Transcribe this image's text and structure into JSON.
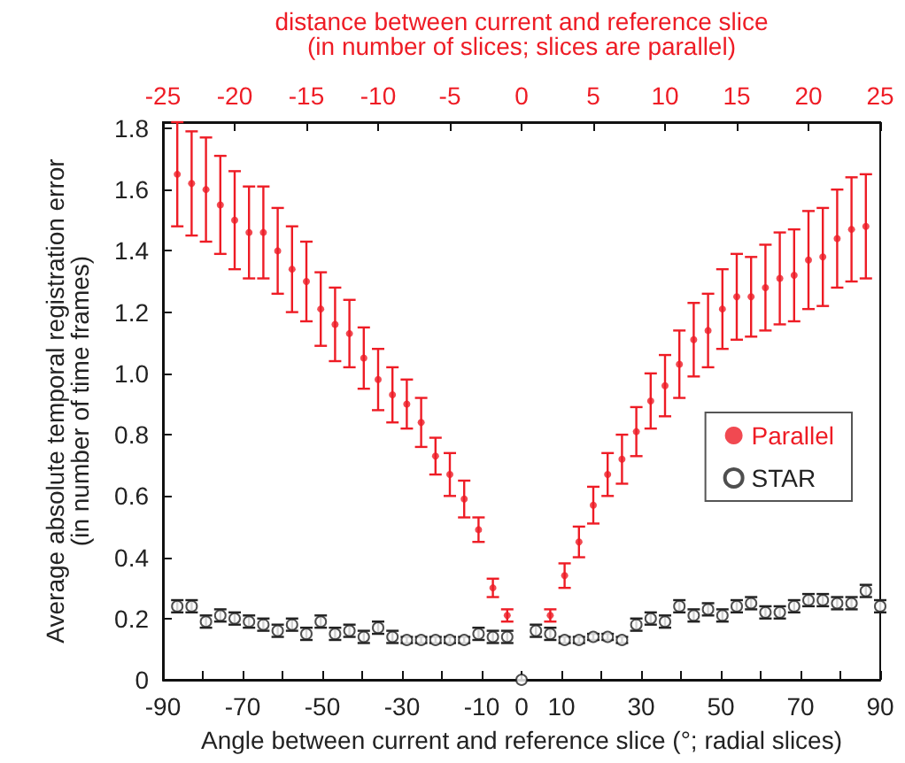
{
  "chart_data": {
    "type": "scatter",
    "xlabel": "Angle between current and reference slice (°; radial slices)",
    "ylabel": "Average absolute temporal registration error\n(in number of time frames)",
    "x2label": "distance between current and reference slice\n(in number of slices; slices are parallel)",
    "xlim": [
      -90,
      90
    ],
    "xticks": [
      -90,
      {
        "value": -80,
        "label": null
      },
      -70,
      {
        "value": -60,
        "label": null
      },
      -50,
      {
        "value": -40,
        "label": null
      },
      -30,
      {
        "value": -20,
        "label": null
      },
      -10,
      0,
      10,
      {
        "value": 20,
        "label": null
      },
      30,
      {
        "value": 40,
        "label": null
      },
      50,
      {
        "value": 60,
        "label": null
      },
      70,
      {
        "value": 80,
        "label": null
      },
      90
    ],
    "x2lim": [
      -25,
      25
    ],
    "x2ticks": [
      -25,
      -20,
      -15,
      -10,
      -5,
      0,
      5,
      10,
      15,
      20,
      25
    ],
    "ylim": [
      0,
      1.82
    ],
    "yticks": [
      0,
      0.2,
      0.4,
      0.6,
      0.8,
      {
        "value": 1,
        "label": "1.0"
      },
      1.2,
      1.4,
      1.6,
      1.8
    ],
    "grid": false,
    "legend": "right",
    "series": [
      {
        "name": "Parallel",
        "color": "#ee1c25",
        "axis": "x2",
        "marker": "circle",
        "x": [
          -24,
          -23,
          -22,
          -21,
          -20,
          -19,
          -18,
          -17,
          -16,
          -15,
          -14,
          -13,
          -12,
          -11,
          -10,
          -9,
          -8,
          -7,
          -6,
          -5,
          -4,
          -3,
          -2,
          -1,
          2,
          3,
          4,
          5,
          6,
          7,
          8,
          9,
          10,
          11,
          12,
          13,
          14,
          15,
          16,
          17,
          18,
          19,
          20,
          21,
          22,
          23,
          24
        ],
        "values": [
          1.65,
          1.62,
          1.6,
          1.55,
          1.5,
          1.46,
          1.46,
          1.4,
          1.34,
          1.3,
          1.21,
          1.16,
          1.13,
          1.05,
          0.98,
          0.93,
          0.9,
          0.84,
          0.73,
          0.67,
          0.59,
          0.49,
          0.3,
          0.21,
          0.21,
          0.34,
          0.45,
          0.57,
          0.67,
          0.72,
          0.81,
          0.91,
          0.96,
          1.03,
          1.11,
          1.14,
          1.21,
          1.25,
          1.25,
          1.28,
          1.31,
          1.32,
          1.37,
          1.38,
          1.44,
          1.47,
          1.48
        ],
        "errors": [
          0.17,
          0.17,
          0.17,
          0.16,
          0.16,
          0.15,
          0.15,
          0.14,
          0.14,
          0.13,
          0.12,
          0.12,
          0.11,
          0.1,
          0.1,
          0.09,
          0.08,
          0.08,
          0.06,
          0.07,
          0.06,
          0.04,
          0.03,
          0.02,
          0.02,
          0.04,
          0.05,
          0.06,
          0.07,
          0.08,
          0.08,
          0.09,
          0.1,
          0.11,
          0.12,
          0.12,
          0.13,
          0.14,
          0.13,
          0.14,
          0.15,
          0.15,
          0.16,
          0.16,
          0.16,
          0.17,
          0.17
        ]
      },
      {
        "name": "STAR",
        "color": "#222222",
        "marker": "circle",
        "x": [
          -86.4,
          -82.8,
          -79.2,
          -75.6,
          -72,
          -68.4,
          -64.8,
          -61.2,
          -57.6,
          -54,
          -50.4,
          -46.8,
          -43.2,
          -39.6,
          -36,
          -32.4,
          -28.8,
          -25.2,
          -21.6,
          -18,
          -14.4,
          -10.8,
          -7.2,
          -3.6,
          0,
          3.6,
          7.2,
          10.8,
          14.4,
          18,
          21.6,
          25.2,
          28.8,
          32.4,
          36,
          39.6,
          43.2,
          46.8,
          50.4,
          54,
          57.6,
          61.2,
          64.8,
          68.4,
          72,
          75.6,
          79.2,
          82.8,
          86.4,
          90
        ],
        "values": [
          0.24,
          0.24,
          0.19,
          0.21,
          0.2,
          0.19,
          0.18,
          0.16,
          0.18,
          0.15,
          0.19,
          0.15,
          0.16,
          0.14,
          0.17,
          0.14,
          0.13,
          0.13,
          0.13,
          0.13,
          0.13,
          0.15,
          0.14,
          0.14,
          0,
          0.16,
          0.15,
          0.13,
          0.13,
          0.14,
          0.14,
          0.13,
          0.18,
          0.2,
          0.19,
          0.24,
          0.21,
          0.23,
          0.21,
          0.24,
          0.25,
          0.22,
          0.22,
          0.24,
          0.26,
          0.26,
          0.25,
          0.25,
          0.29,
          0.24
        ],
        "errors": [
          0.02,
          0.02,
          0.02,
          0.02,
          0.02,
          0.02,
          0.02,
          0.02,
          0.02,
          0.02,
          0.02,
          0.02,
          0.02,
          0.02,
          0.02,
          0.02,
          0.01,
          0.01,
          0.01,
          0.01,
          0.01,
          0.02,
          0.02,
          0.02,
          null,
          0.02,
          0.02,
          0.01,
          0.01,
          0.01,
          0.01,
          0.01,
          0.02,
          0.02,
          0.02,
          0.02,
          0.02,
          0.02,
          0.02,
          0.02,
          0.02,
          0.02,
          0.02,
          0.02,
          0.02,
          0.02,
          0.02,
          0.02,
          0.02,
          0.02
        ]
      }
    ]
  }
}
